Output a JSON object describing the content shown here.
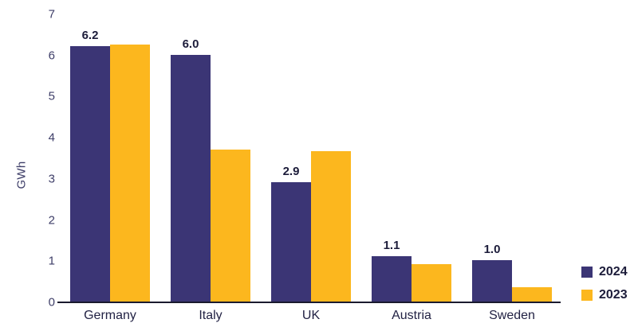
{
  "chart": {
    "ylabel": "GWh"
  },
  "chart_data": {
    "type": "bar",
    "title": "",
    "xlabel": "",
    "ylabel": "GWh",
    "categories": [
      "Germany",
      "Italy",
      "UK",
      "Austria",
      "Sweden"
    ],
    "series": [
      {
        "name": "2024",
        "color": "#3b3575",
        "values": [
          6.2,
          6.0,
          2.9,
          1.1,
          1.0
        ],
        "labels": [
          "6.2",
          "6.0",
          "2.9",
          "1.1",
          "1.0"
        ]
      },
      {
        "name": "2023",
        "color": "#fcb71e",
        "values": [
          6.25,
          3.7,
          3.65,
          0.9,
          0.35
        ],
        "labels": [
          "",
          "",
          "",
          "",
          ""
        ]
      }
    ],
    "ylim": [
      0,
      7
    ],
    "yticks": [
      0,
      1,
      2,
      3,
      4,
      5,
      6,
      7
    ],
    "grid": false,
    "legend_position": "bottom-right",
    "colors": {
      "text_dark": "#1c1c3a",
      "text_axis": "#3e3e68",
      "axis_line": "#1a1a2e",
      "background": "#ffffff"
    }
  }
}
